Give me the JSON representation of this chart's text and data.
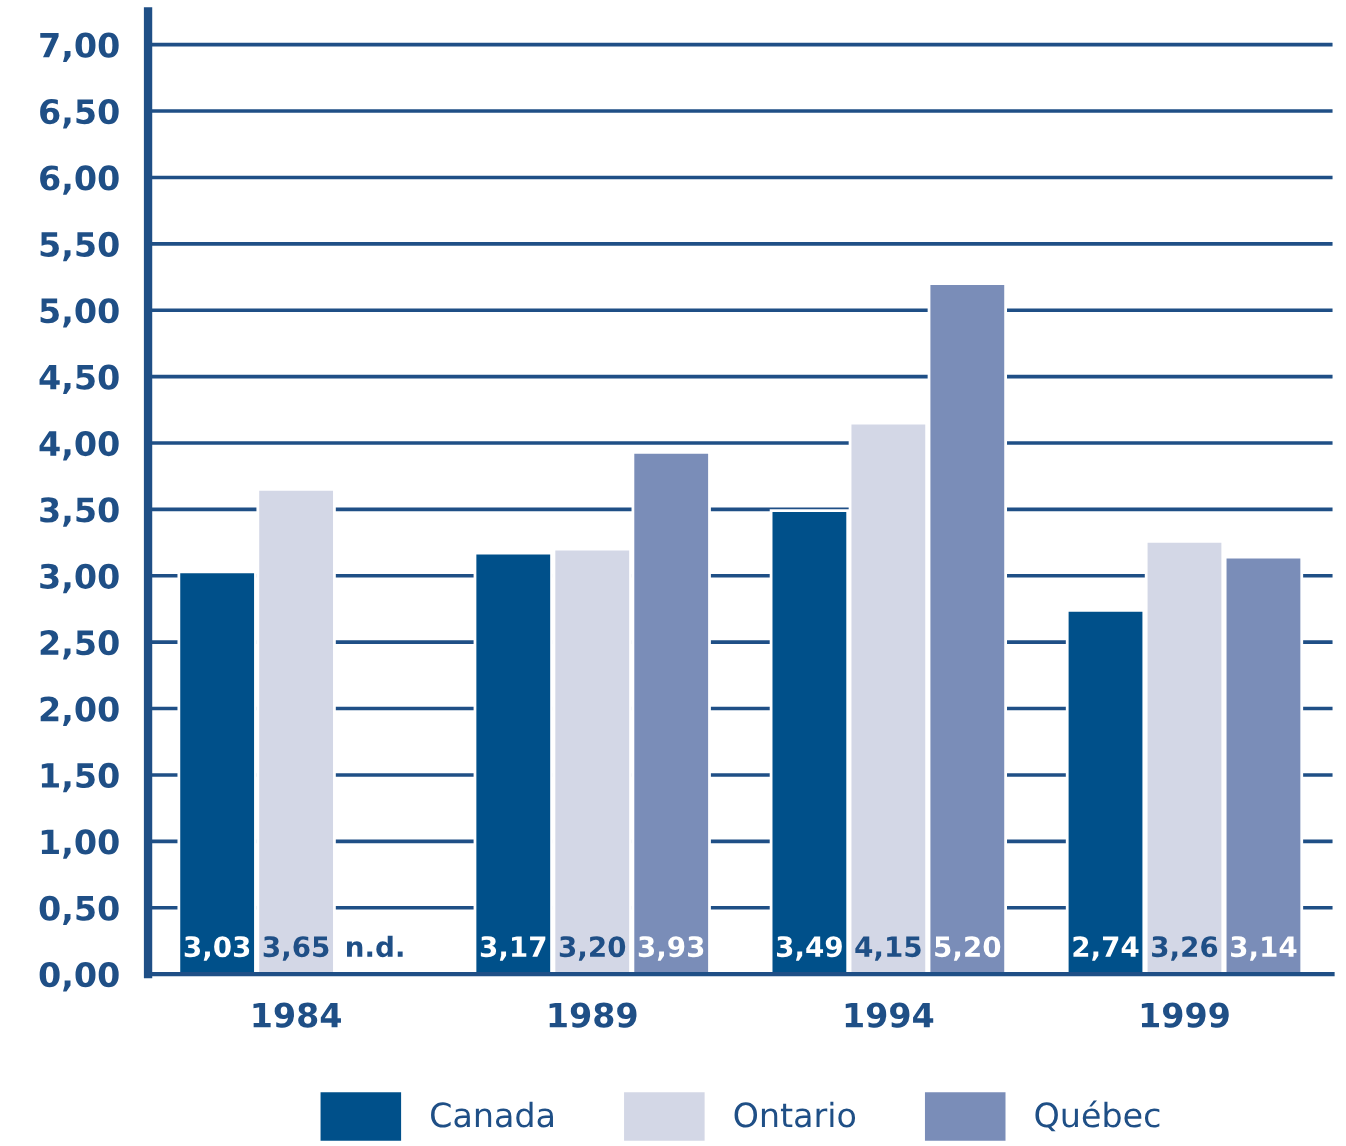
{
  "chart_data": {
    "type": "bar",
    "categories": [
      "1984",
      "1989",
      "1994",
      "1999"
    ],
    "series": [
      {
        "name": "Canada",
        "color": "#00508a",
        "values": [
          3.03,
          3.17,
          3.49,
          2.74
        ],
        "value_labels": [
          "3,03",
          "3,17",
          "3,49",
          "2,74"
        ]
      },
      {
        "name": "Ontario",
        "color": "#d3d7e6",
        "values": [
          3.65,
          3.2,
          4.15,
          3.26
        ],
        "value_labels": [
          "3,65",
          "3,20",
          "4,15",
          "3,26"
        ]
      },
      {
        "name": "Québec",
        "color": "#7a8db8",
        "values": [
          null,
          3.93,
          5.2,
          3.14
        ],
        "value_labels": [
          "n.d.",
          "3,93",
          "5,20",
          "3,14"
        ]
      }
    ],
    "ylim": [
      0,
      7.25
    ],
    "yticks": [
      {
        "value": 0,
        "label": "0,00"
      },
      {
        "value": 0.5,
        "label": "0,50"
      },
      {
        "value": 1,
        "label": "1,00"
      },
      {
        "value": 1.5,
        "label": "1,50"
      },
      {
        "value": 2,
        "label": "2,00"
      },
      {
        "value": 2.5,
        "label": "2,50"
      },
      {
        "value": 3,
        "label": "3,00"
      },
      {
        "value": 3.5,
        "label": "3,50"
      },
      {
        "value": 4,
        "label": "4,00"
      },
      {
        "value": 4.5,
        "label": "4,50"
      },
      {
        "value": 5,
        "label": "5,00"
      },
      {
        "value": 5.5,
        "label": "5,50"
      },
      {
        "value": 6,
        "label": "6,00"
      },
      {
        "value": 6.5,
        "label": "6,50"
      },
      {
        "value": 7,
        "label": "7,00"
      }
    ],
    "grid": "y",
    "legend": "bottom"
  }
}
